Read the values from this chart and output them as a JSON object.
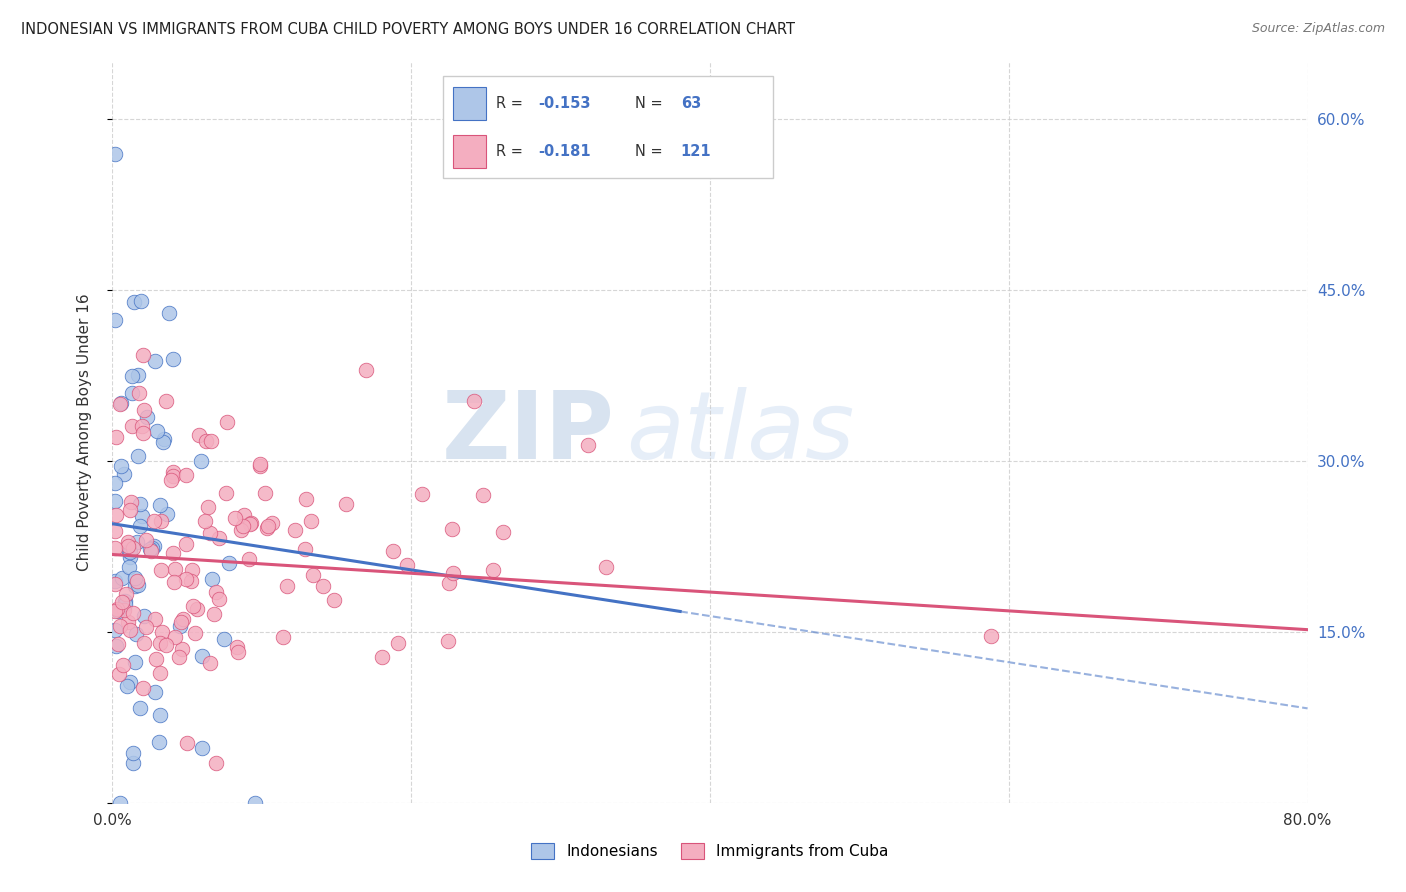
{
  "title": "INDONESIAN VS IMMIGRANTS FROM CUBA CHILD POVERTY AMONG BOYS UNDER 16 CORRELATION CHART",
  "source": "Source: ZipAtlas.com",
  "ylabel": "Child Poverty Among Boys Under 16",
  "xlim": [
    0.0,
    0.8
  ],
  "ylim": [
    0.0,
    0.65
  ],
  "r_indonesian": -0.153,
  "n_indonesian": 63,
  "r_cuba": -0.181,
  "n_cuba": 121,
  "color_indonesian": "#aec6e8",
  "color_cuba": "#f4aec0",
  "line_color_indonesian": "#4472c4",
  "line_color_cuba": "#d9547a",
  "watermark_ZIP": "ZIP",
  "watermark_atlas": "atlas",
  "background_color": "#ffffff"
}
